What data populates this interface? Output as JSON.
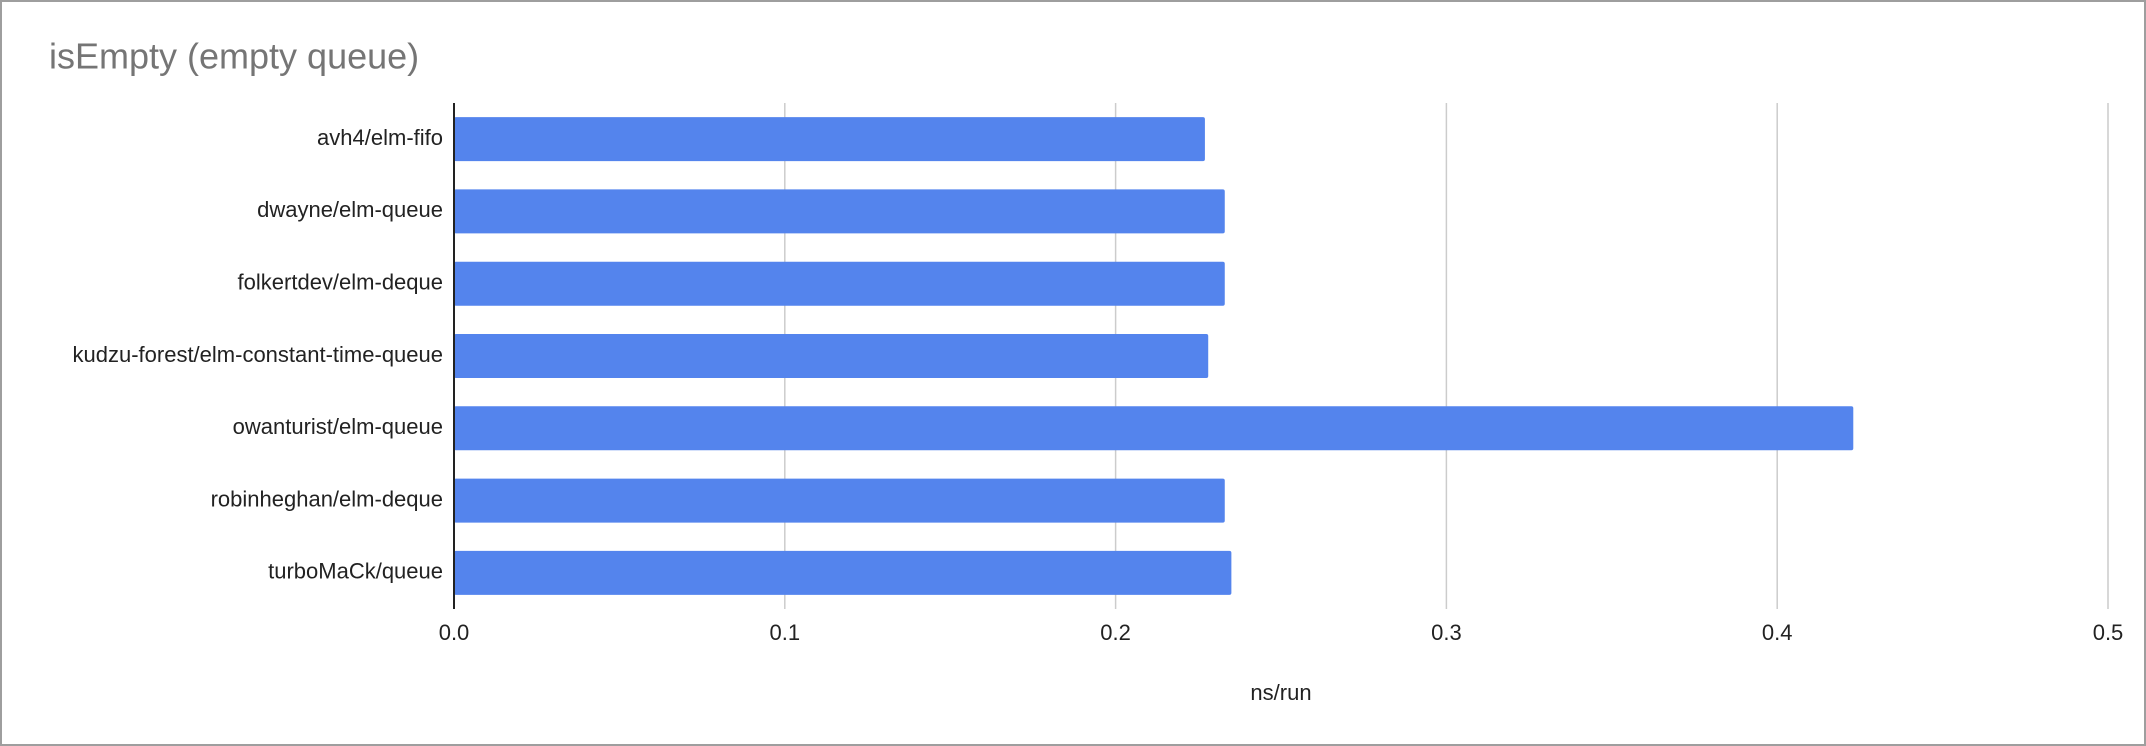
{
  "chart_data": {
    "type": "bar",
    "orientation": "horizontal",
    "title": "isEmpty (empty queue)",
    "x_label": "ns/run",
    "categories": [
      "avh4/elm-fifo",
      "dwayne/elm-queue",
      "folkertdev/elm-deque",
      "kudzu-forest/elm-constant-time-queue",
      "owanturist/elm-queue",
      "robinheghan/elm-deque",
      "turboMaCk/queue"
    ],
    "values": [
      0.227,
      0.233,
      0.233,
      0.228,
      0.423,
      0.233,
      0.235
    ],
    "color": "#5484ed",
    "xlim": [
      0,
      0.5
    ],
    "xticks": [
      {
        "value": 0,
        "label": "0.0"
      },
      0.1,
      0.2,
      0.3,
      0.4,
      0.5
    ],
    "grid": true
  }
}
